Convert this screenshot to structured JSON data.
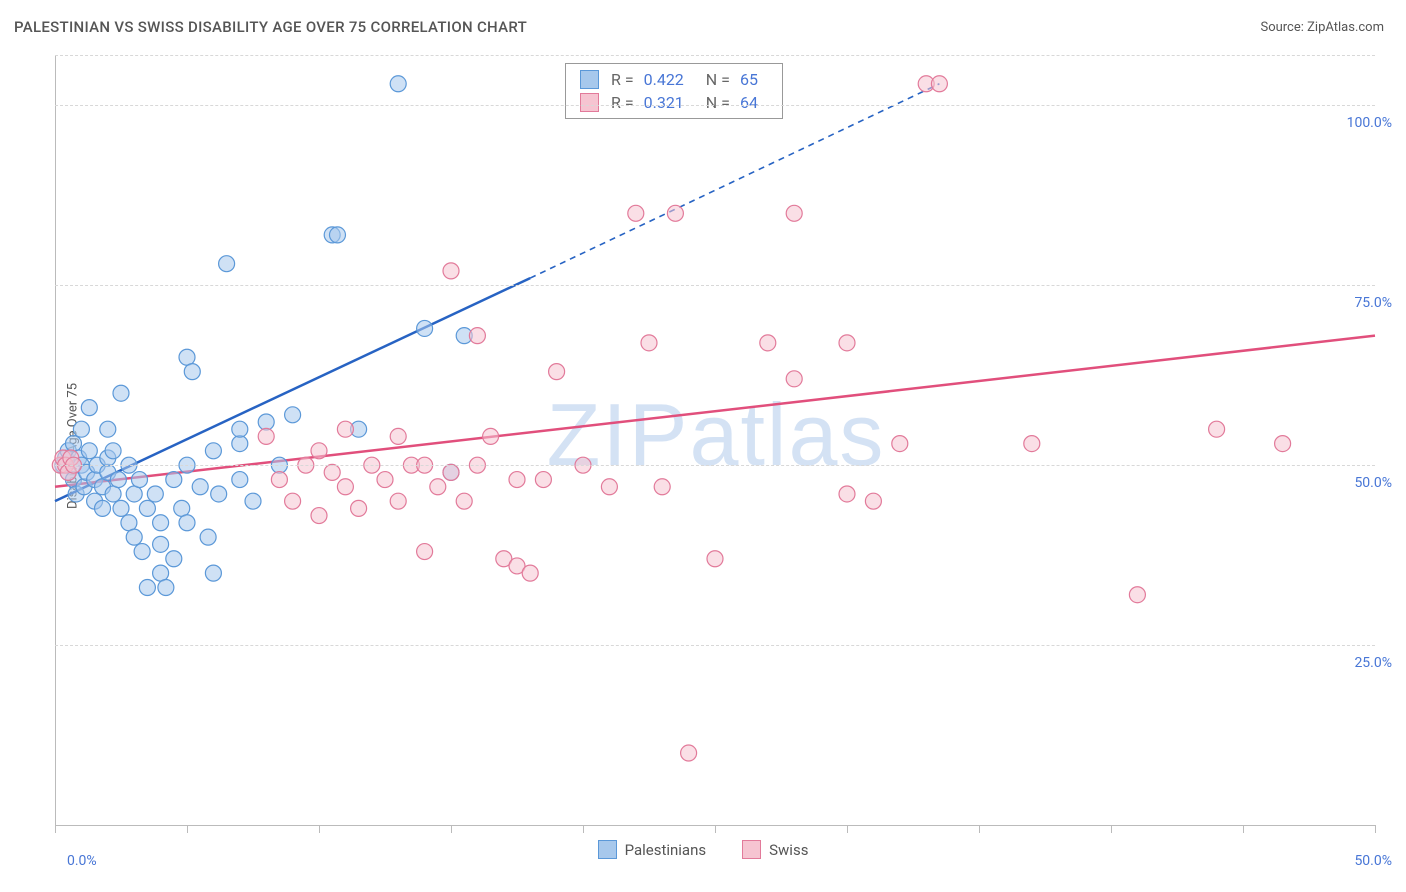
{
  "title": "PALESTINIAN VS SWISS DISABILITY AGE OVER 75 CORRELATION CHART",
  "source": "Source: ZipAtlas.com",
  "watermark": "ZIPatlas",
  "y_axis_label": "Disability Age Over 75",
  "chart": {
    "type": "scatter",
    "xlim": [
      0,
      50
    ],
    "ylim": [
      0,
      107
    ],
    "x_ticks": [
      0,
      5,
      10,
      15,
      20,
      25,
      30,
      35,
      40,
      45,
      50
    ],
    "x_tick_labels": {
      "0": "0.0%",
      "50": "50.0%"
    },
    "y_gridlines": [
      25,
      50,
      75,
      100,
      107
    ],
    "y_tick_labels": {
      "25": "25.0%",
      "50": "50.0%",
      "75": "75.0%",
      "100": "100.0%"
    },
    "background_color": "#ffffff",
    "grid_color": "#d8d8d8",
    "marker_radius": 8,
    "marker_opacity": 0.55,
    "series": [
      {
        "key": "palestinians",
        "label": "Palestinians",
        "fill": "#a7c8ec",
        "stroke": "#5b98d8",
        "line_color": "#2763c3",
        "R": "0.422",
        "N": "65",
        "trend": {
          "x1": 0,
          "y1": 45,
          "x2": 18,
          "y2": 76
        },
        "trend_extrapolate": {
          "x1": 18,
          "y1": 76,
          "x2": 33.5,
          "y2": 103
        },
        "points": [
          [
            0.3,
            50
          ],
          [
            0.4,
            51
          ],
          [
            0.5,
            49
          ],
          [
            0.5,
            52
          ],
          [
            0.7,
            48
          ],
          [
            0.7,
            53
          ],
          [
            0.8,
            46
          ],
          [
            0.9,
            51
          ],
          [
            1.0,
            50
          ],
          [
            1.0,
            55
          ],
          [
            1.1,
            47
          ],
          [
            1.2,
            49
          ],
          [
            1.3,
            52
          ],
          [
            1.3,
            58
          ],
          [
            1.5,
            45
          ],
          [
            1.5,
            48
          ],
          [
            1.6,
            50
          ],
          [
            1.8,
            47
          ],
          [
            1.8,
            44
          ],
          [
            2.0,
            49
          ],
          [
            2.0,
            51
          ],
          [
            2.0,
            55
          ],
          [
            2.2,
            46
          ],
          [
            2.2,
            52
          ],
          [
            2.4,
            48
          ],
          [
            2.5,
            44
          ],
          [
            2.5,
            60
          ],
          [
            2.8,
            42
          ],
          [
            2.8,
            50
          ],
          [
            3.0,
            46
          ],
          [
            3.0,
            40
          ],
          [
            3.2,
            48
          ],
          [
            3.3,
            38
          ],
          [
            3.5,
            33
          ],
          [
            3.5,
            44
          ],
          [
            3.8,
            46
          ],
          [
            4.0,
            35
          ],
          [
            4.0,
            39
          ],
          [
            4.0,
            42
          ],
          [
            4.2,
            33
          ],
          [
            4.5,
            48
          ],
          [
            4.5,
            37
          ],
          [
            4.8,
            44
          ],
          [
            5.0,
            65
          ],
          [
            5.0,
            50
          ],
          [
            5.0,
            42
          ],
          [
            5.2,
            63
          ],
          [
            5.5,
            47
          ],
          [
            5.8,
            40
          ],
          [
            6.0,
            52
          ],
          [
            6.0,
            35
          ],
          [
            6.2,
            46
          ],
          [
            6.5,
            78
          ],
          [
            7.0,
            48
          ],
          [
            7.0,
            53
          ],
          [
            7.0,
            55
          ],
          [
            7.5,
            45
          ],
          [
            8.0,
            56
          ],
          [
            8.5,
            50
          ],
          [
            9.0,
            57
          ],
          [
            10.5,
            82
          ],
          [
            10.7,
            82
          ],
          [
            11.5,
            55
          ],
          [
            13.0,
            103
          ],
          [
            14.0,
            69
          ],
          [
            15.5,
            68
          ],
          [
            15.0,
            49
          ]
        ]
      },
      {
        "key": "swiss",
        "label": "Swiss",
        "fill": "#f6c4d1",
        "stroke": "#e27a9a",
        "line_color": "#e14f7c",
        "R": "0.321",
        "N": "64",
        "trend": {
          "x1": 0,
          "y1": 47,
          "x2": 50,
          "y2": 68
        },
        "points": [
          [
            0.2,
            50
          ],
          [
            0.3,
            51
          ],
          [
            0.4,
            50
          ],
          [
            0.5,
            49
          ],
          [
            0.6,
            51
          ],
          [
            0.7,
            50
          ],
          [
            8.0,
            54
          ],
          [
            8.5,
            48
          ],
          [
            9.0,
            45
          ],
          [
            9.5,
            50
          ],
          [
            10.0,
            52
          ],
          [
            10.0,
            43
          ],
          [
            10.5,
            49
          ],
          [
            11.0,
            55
          ],
          [
            11.0,
            47
          ],
          [
            11.5,
            44
          ],
          [
            12.0,
            50
          ],
          [
            12.5,
            48
          ],
          [
            13.0,
            54
          ],
          [
            13.0,
            45
          ],
          [
            13.5,
            50
          ],
          [
            14.0,
            38
          ],
          [
            14.0,
            50
          ],
          [
            14.5,
            47
          ],
          [
            15.0,
            49
          ],
          [
            15.0,
            77
          ],
          [
            15.5,
            45
          ],
          [
            16.0,
            68
          ],
          [
            16.0,
            50
          ],
          [
            16.5,
            54
          ],
          [
            17.0,
            37
          ],
          [
            17.5,
            48
          ],
          [
            17.5,
            36
          ],
          [
            18.0,
            35
          ],
          [
            18.5,
            48
          ],
          [
            19.0,
            63
          ],
          [
            20.0,
            50
          ],
          [
            21.0,
            47
          ],
          [
            22.0,
            85
          ],
          [
            22.5,
            67
          ],
          [
            23.0,
            47
          ],
          [
            23.5,
            85
          ],
          [
            24.0,
            10
          ],
          [
            25.0,
            37
          ],
          [
            27.0,
            67
          ],
          [
            28.0,
            62
          ],
          [
            28.0,
            85
          ],
          [
            30.0,
            67
          ],
          [
            30.0,
            46
          ],
          [
            31.0,
            45
          ],
          [
            32.0,
            53
          ],
          [
            33.0,
            103
          ],
          [
            33.5,
            103
          ],
          [
            37.0,
            53
          ],
          [
            41.0,
            32
          ],
          [
            44.0,
            55
          ],
          [
            46.5,
            53
          ]
        ]
      }
    ]
  },
  "stats_legend_labels": {
    "R": "R =",
    "N": "N ="
  },
  "bottom_legend": [
    "palestinians",
    "swiss"
  ]
}
